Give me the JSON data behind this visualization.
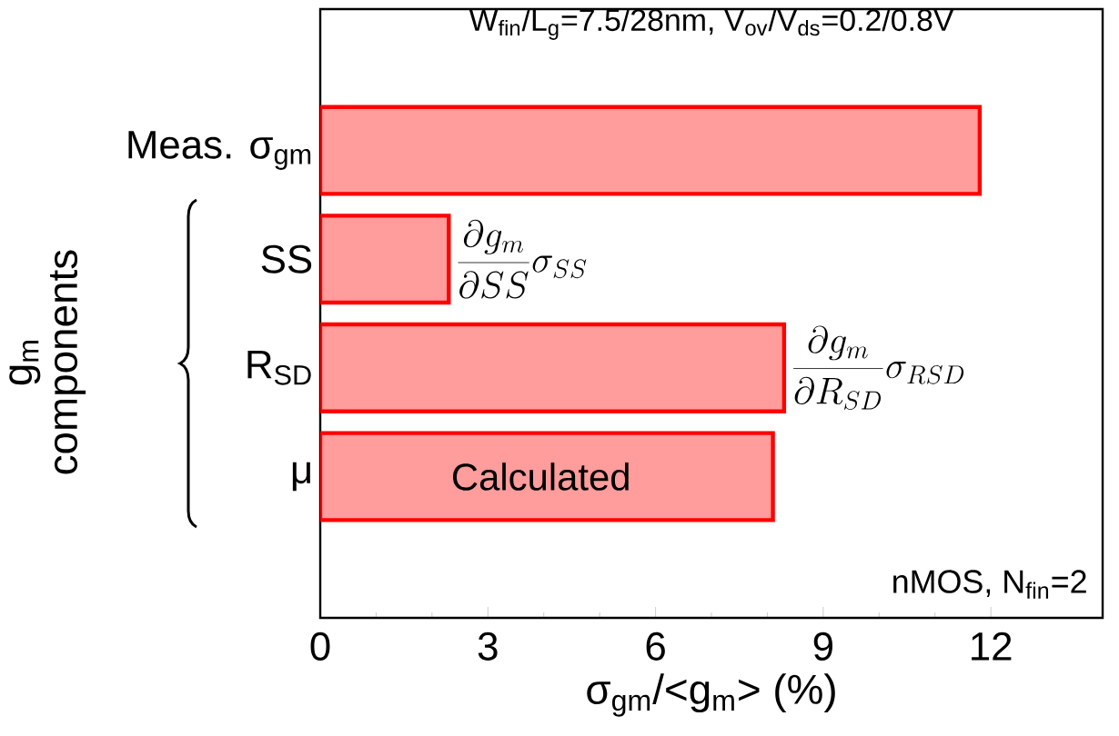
{
  "chart_data": {
    "type": "bar",
    "orientation": "horizontal",
    "title": "W$_{fin}$/L$_{g}$=7.5/28nm, V$_{ov}$/V$_{ds}$=0.2/0.8V",
    "xlabel": "σ$_{gm}$/<g$_{m}$> (%)",
    "ylabel": "g$_{m}$ components",
    "categories": [
      "Meas. σ$_{gm}$",
      "SS",
      "R$_{SD}$",
      "μ"
    ],
    "values": [
      11.8,
      2.3,
      8.3,
      8.1
    ],
    "color": "#ff9c9c",
    "xlim": [
      0,
      14
    ],
    "xticks": [
      0,
      3,
      6,
      9,
      12
    ],
    "grid": false,
    "annotations": [
      "\\frac{\\partial g_m}{\\partial SS}\\sigma_{SS}",
      "\\frac{\\partial g_m}{\\partial R_{SD}}\\sigma_{RSD}",
      "Calculated",
      "nMOS, N$_{fin}$=2"
    ]
  }
}
